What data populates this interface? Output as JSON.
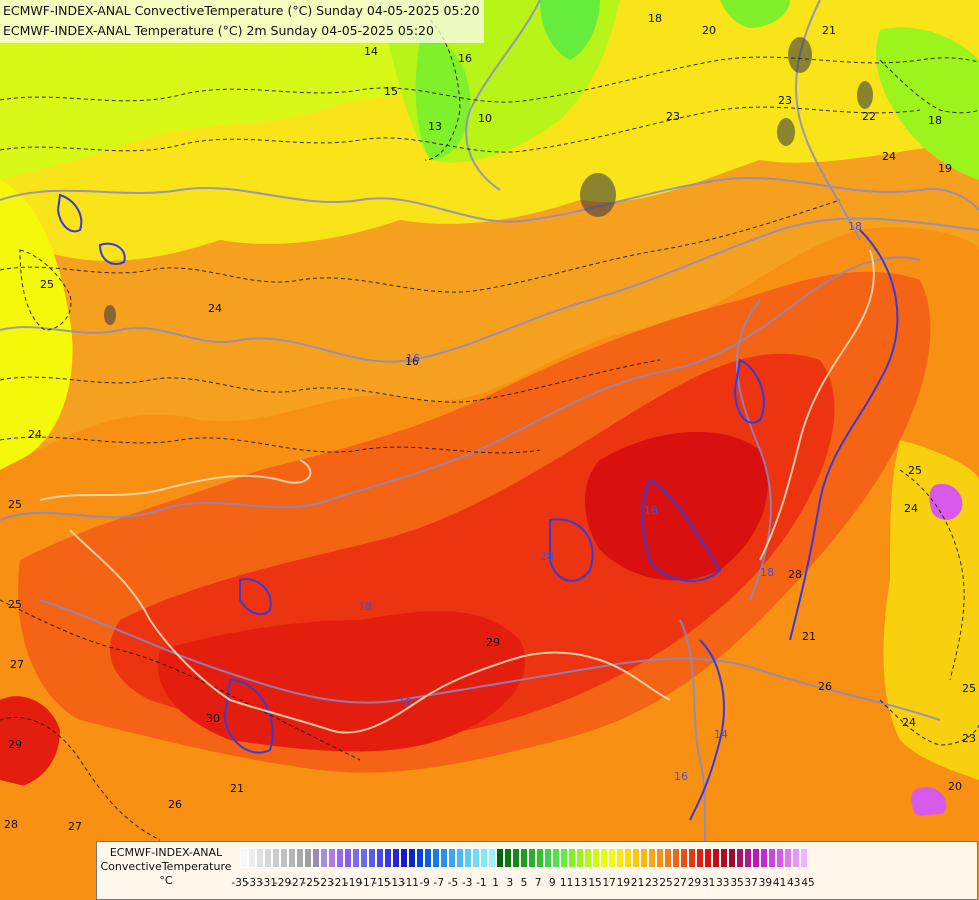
{
  "header": {
    "line1": "ECMWF-INDEX-ANAL ConvectiveTemperature (°C) Sunday 04-05-2025 05:20",
    "line2": "ECMWF-INDEX-ANAL Temperature (°C) 2m Sunday 04-05-2025 05:20"
  },
  "legend": {
    "line1": "ECMWF-INDEX-ANAL",
    "line2": "ConvectiveTemperature",
    "unit": "°C",
    "ticks": [
      "-35",
      "-33",
      "-31",
      "-29",
      "-27",
      "-25",
      "-23",
      "-21",
      "-19",
      "-17",
      "-15",
      "-13",
      "-11",
      "-9",
      "-7",
      "-5",
      "-3",
      "-1",
      "1",
      "3",
      "5",
      "7",
      "9",
      "11",
      "13",
      "15",
      "17",
      "19",
      "21",
      "23",
      "25",
      "27",
      "29",
      "31",
      "33",
      "35",
      "37",
      "39",
      "41",
      "43",
      "45"
    ],
    "colors": [
      "#f8f8f8",
      "#ececec",
      "#e0e0e0",
      "#d6d6d6",
      "#cbcbcb",
      "#c0c0c0",
      "#b6b6b6",
      "#aaaaaa",
      "#a0a0a0",
      "#9a8caf",
      "#a68cd9",
      "#b07ae6",
      "#9966ee",
      "#8a5cf0",
      "#7b6cf2",
      "#6a6af0",
      "#5a5aec",
      "#4848e6",
      "#3838e0",
      "#2626d8",
      "#1818cc",
      "#0c22c8",
      "#0044dd",
      "#0a5fe6",
      "#1a78ee",
      "#2890f0",
      "#38a4f2",
      "#48b8f4",
      "#5ccaf6",
      "#70daf8",
      "#86e6f8",
      "#9ef0fa",
      "#006400",
      "#0a7a0a",
      "#148c14",
      "#1e9e1e",
      "#28b028",
      "#32c232",
      "#42d242",
      "#52e052",
      "#66ec3c",
      "#80f02a",
      "#9cf41c",
      "#b8f814",
      "#d0fa10",
      "#e6fc0c",
      "#f6f80a",
      "#fae80a",
      "#fcd80c",
      "#fcc80e",
      "#fcb810",
      "#faa412",
      "#f89014",
      "#f67a14",
      "#f46414",
      "#f04c12",
      "#ec3410",
      "#e41e0e",
      "#d81010",
      "#c80a14",
      "#b4081c",
      "#a00a2a",
      "#aa1060",
      "#b4148c",
      "#be18b4",
      "#c828d2",
      "#d040e2",
      "#d85aec",
      "#e078f2",
      "#e896f6",
      "#f0b4fa"
    ]
  },
  "contour_labels": {
    "dashed": [
      "25",
      "24",
      "24",
      "25",
      "25",
      "27",
      "29",
      "26",
      "28",
      "21",
      "16",
      "14",
      "15",
      "13",
      "18",
      "16",
      "20",
      "21",
      "23",
      "22",
      "24",
      "19",
      "18",
      "10",
      "23",
      "24",
      "25",
      "26",
      "21",
      "24",
      "25",
      "20",
      "23",
      "27",
      "28"
    ],
    "solid": [
      "18",
      "28",
      "18",
      "29",
      "30",
      "10",
      "18",
      "14",
      "16",
      "18",
      "16"
    ]
  },
  "colors": {
    "contour_temp": "#111111",
    "contour_convective": "#7070c0",
    "contour_low": "#3030d0",
    "border": "#e8d0a0"
  }
}
